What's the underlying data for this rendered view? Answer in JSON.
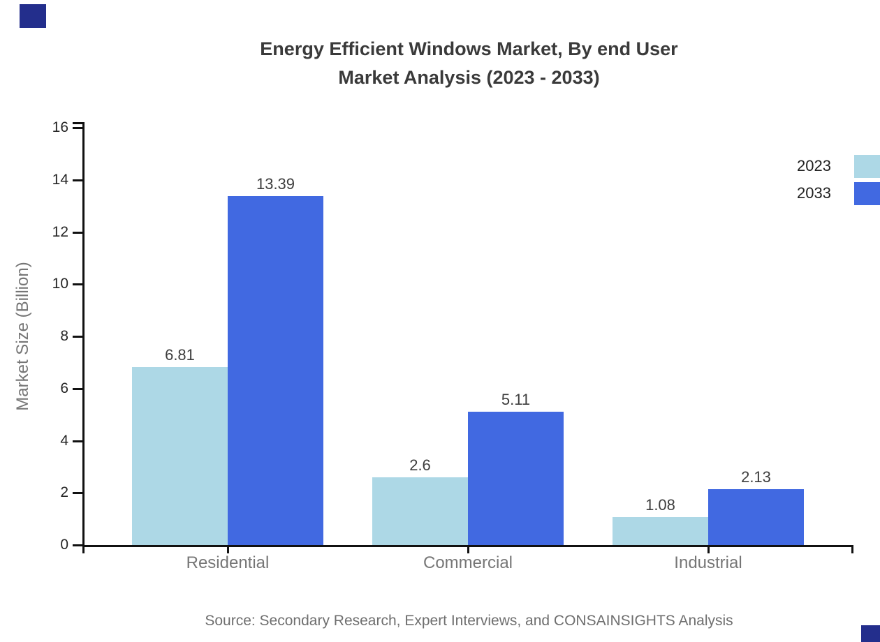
{
  "title": {
    "line1": "Energy Efficient Windows Market, By end User",
    "line2": "Market Analysis (2023 - 2033)"
  },
  "chart_data": {
    "type": "bar",
    "title": "Energy Efficient Windows Market, By end User Market Analysis (2023 - 2033)",
    "categories": [
      "Residential",
      "Commercial",
      "Industrial"
    ],
    "series": [
      {
        "name": "2023",
        "color": "#ADD8E6",
        "values": [
          6.81,
          2.6,
          1.08
        ],
        "labels": [
          "6.81",
          "2.6",
          "1.08"
        ]
      },
      {
        "name": "2033",
        "color": "#4169E1",
        "values": [
          13.39,
          5.11,
          2.13
        ],
        "labels": [
          "13.39",
          "5.11",
          "2.13"
        ]
      }
    ],
    "xlabel": "",
    "ylabel": "Market Size (Billion)",
    "ylim": [
      0,
      16
    ],
    "yticks": [
      0,
      2,
      4,
      6,
      8,
      10,
      12,
      14,
      16
    ],
    "grid": false,
    "legend_position": "outside upper right, swatches clipped at right edge"
  },
  "legend": {
    "items": [
      {
        "label": "2023",
        "color": "#ADD8E6"
      },
      {
        "label": "2033",
        "color": "#4169E1"
      }
    ]
  },
  "source": {
    "text": "Source: Secondary Research, Expert Interviews, and CONSAINSIGHTS Analysis"
  },
  "decorations": {
    "corner_marker_color": "#232e8c"
  },
  "colors": {
    "axis": "#111111",
    "tick_label": "#262626",
    "category_label": "#767676",
    "value_label": "#3d3d3d",
    "title": "#3a3a3a",
    "source": "#6f6f6f",
    "legend_text": "#1f1f1f"
  }
}
